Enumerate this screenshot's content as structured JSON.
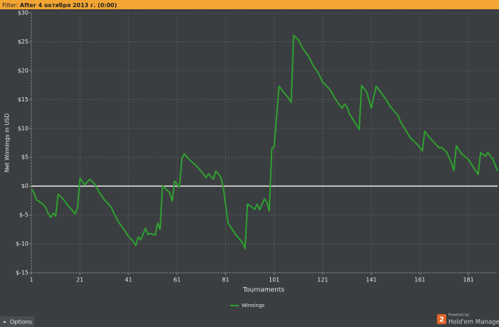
{
  "filter": {
    "label": "Filter:",
    "value": "After 4 октября 2013 г. (0:00)"
  },
  "chart_data": {
    "type": "line",
    "xlabel": "Tournaments",
    "ylabel": "Net Winnings in USD",
    "x": [
      1,
      2,
      3,
      6,
      7,
      8,
      9,
      10,
      11,
      12,
      14,
      16,
      18,
      19,
      20,
      21,
      23,
      25,
      27,
      29,
      31,
      34,
      35,
      37,
      39,
      41,
      43,
      44,
      45,
      46,
      48,
      49,
      50,
      52,
      53,
      54,
      55,
      58,
      59,
      60,
      62,
      63,
      64,
      66,
      69,
      71,
      73,
      74,
      76,
      77,
      79,
      80,
      82,
      85,
      88,
      89,
      90,
      93,
      94,
      95,
      97,
      98,
      99,
      100,
      101,
      103,
      105,
      107,
      108,
      109,
      111,
      113,
      115,
      117,
      119,
      121,
      124,
      126,
      128,
      129,
      130,
      131,
      132,
      134,
      136,
      137,
      139,
      141,
      143,
      145,
      147,
      149,
      152,
      153,
      155,
      157,
      160,
      162,
      163,
      165,
      167,
      169,
      170,
      172,
      174,
      175,
      176,
      178,
      181,
      183,
      185,
      186,
      188,
      189,
      191,
      193
    ],
    "series": [
      {
        "name": "Winnings",
        "color": "#2fa02f",
        "values": [
          -0.4,
          -1.1,
          -2.3,
          -3.2,
          -3.8,
          -4.8,
          -5.4,
          -4.7,
          -5.2,
          -1.4,
          -2.2,
          -3.3,
          -4.3,
          -4.8,
          -3.8,
          1.4,
          0.2,
          1.2,
          0.4,
          -1.1,
          -2.3,
          -3.7,
          -4.7,
          -6.3,
          -7.4,
          -8.7,
          -9.6,
          -10.3,
          -8.8,
          -9.3,
          -7.3,
          -8.4,
          -8.2,
          -8.5,
          -6.4,
          -7.5,
          0.1,
          -1.2,
          -2.6,
          0.9,
          -0.2,
          4.8,
          5.6,
          4.6,
          3.5,
          2.5,
          1.5,
          2.1,
          1.2,
          2.6,
          1.6,
          -0.1,
          -6.4,
          -8.3,
          -9.8,
          -10.8,
          -3.1,
          -4,
          -3.1,
          -4.1,
          -2.2,
          -2.8,
          -4.3,
          6.4,
          6.9,
          17.3,
          16.2,
          15.2,
          14.5,
          26.1,
          25.3,
          23.7,
          22.6,
          20.9,
          19.7,
          18,
          16.7,
          15.2,
          14,
          13.5,
          14.2,
          13.7,
          12.5,
          11.2,
          9.8,
          17.4,
          16.4,
          13.5,
          17.3,
          16.2,
          15,
          13.7,
          12.2,
          11.2,
          9.8,
          8.4,
          7.2,
          6.1,
          9.5,
          8.4,
          7.5,
          6.6,
          6.7,
          5.9,
          4,
          2.7,
          7,
          5.7,
          4.6,
          3.3,
          2,
          5.8,
          5.2,
          5.8,
          4.7,
          2.6
        ]
      }
    ],
    "xlim": [
      1,
      193
    ],
    "ylim": [
      -15,
      30
    ],
    "xticks": [
      1,
      21,
      41,
      61,
      81,
      101,
      121,
      141,
      161,
      181
    ],
    "yticks": [
      {
        "value": 30,
        "label": "$30"
      },
      {
        "value": 25,
        "label": "$25"
      },
      {
        "value": 20,
        "label": "$20"
      },
      {
        "value": 15,
        "label": "$15"
      },
      {
        "value": 10,
        "label": "$10"
      },
      {
        "value": 5,
        "label": "$5"
      },
      {
        "value": 0,
        "label": "$0"
      },
      {
        "value": -5,
        "label": "$-5"
      },
      {
        "value": -10,
        "label": "$-10"
      },
      {
        "value": -15,
        "label": "$-15"
      }
    ],
    "grid": true,
    "legend": "bottom"
  },
  "footer": {
    "options": "Options",
    "logo": "2",
    "powered_by": "Powered by",
    "brand": "Hold'em Manager"
  }
}
